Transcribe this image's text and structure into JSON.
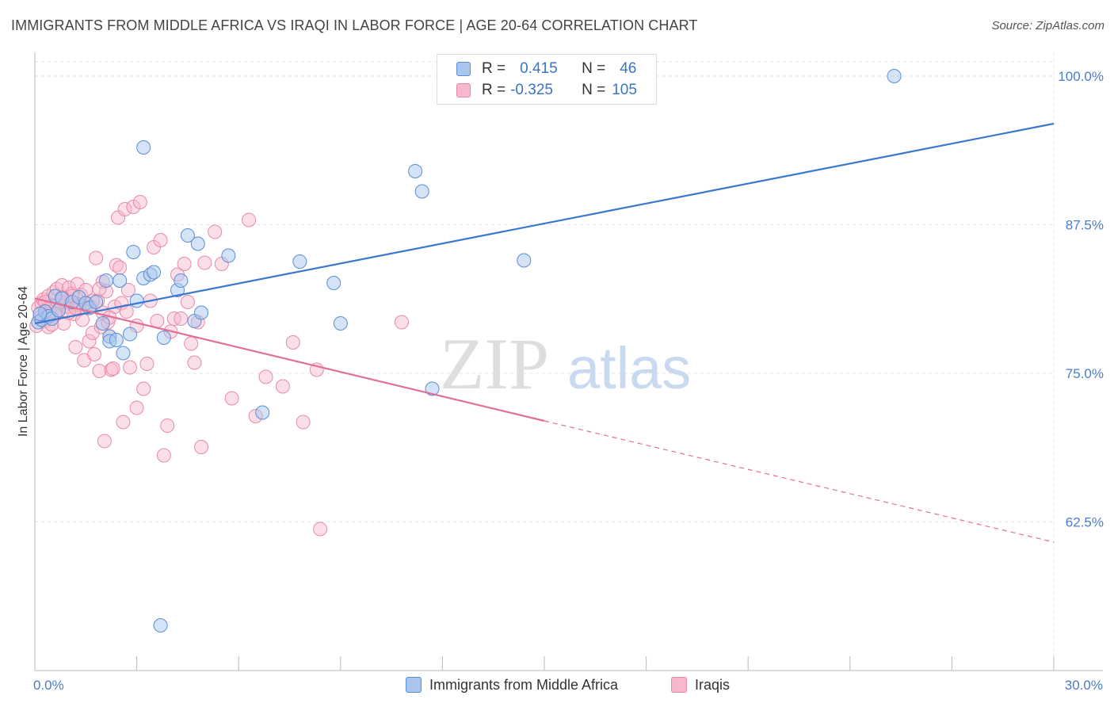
{
  "title": "IMMIGRANTS FROM MIDDLE AFRICA VS IRAQI IN LABOR FORCE | AGE 20-64 CORRELATION CHART",
  "source": "Source: ZipAtlas.com",
  "legend_stats": [
    {
      "r_label": "R =",
      "r_value": "0.415",
      "n_label": "N =",
      "n_value": "46"
    },
    {
      "r_label": "R =",
      "r_value": "-0.325",
      "n_label": "N =",
      "n_value": "105"
    }
  ],
  "watermark": {
    "zip": "ZIP",
    "atlas": "atlas"
  },
  "colors": {
    "blue_fill": "#a9c7ee",
    "blue_stroke": "#5a8fd6",
    "blue_line": "#3a78d0",
    "pink_fill": "#f6b8cc",
    "pink_stroke": "#e88aa8",
    "pink_line": "#e0709a",
    "grid": "#e3e3e3",
    "axis_text": "#4a7cc8"
  },
  "chart_data": {
    "type": "scatter",
    "xlabel": "",
    "ylabel": "In Labor Force | Age 20-64",
    "xlim": [
      0,
      30
    ],
    "ylim": [
      50,
      102
    ],
    "x_tick_labels": [
      "0.0%",
      "30.0%"
    ],
    "y_ticks": [
      62.5,
      75.0,
      87.5,
      100.0
    ],
    "y_tick_labels": [
      "62.5%",
      "75.0%",
      "87.5%",
      "100.0%"
    ],
    "grid": true,
    "legend_position": "bottom-center",
    "series": [
      {
        "name": "Immigrants from Middle Africa",
        "color": "#a9c7ee",
        "trend": {
          "x": [
            0.0,
            30.0
          ],
          "y": [
            79.2,
            96.0
          ],
          "style": "solid"
        },
        "points": [
          [
            0.1,
            79.3
          ],
          [
            0.2,
            79.5
          ],
          [
            0.3,
            80.2
          ],
          [
            0.4,
            79.8
          ],
          [
            0.5,
            79.6
          ],
          [
            0.6,
            81.5
          ],
          [
            0.8,
            81.3
          ],
          [
            1.1,
            81.0
          ],
          [
            1.3,
            81.4
          ],
          [
            1.5,
            80.9
          ],
          [
            1.6,
            80.5
          ],
          [
            1.8,
            81.0
          ],
          [
            2.0,
            79.2
          ],
          [
            2.1,
            82.8
          ],
          [
            2.2,
            78.1
          ],
          [
            2.2,
            77.7
          ],
          [
            2.4,
            77.8
          ],
          [
            2.5,
            82.8
          ],
          [
            2.6,
            76.7
          ],
          [
            2.8,
            78.3
          ],
          [
            2.9,
            85.2
          ],
          [
            3.0,
            81.1
          ],
          [
            3.2,
            83.0
          ],
          [
            3.2,
            94.0
          ],
          [
            3.4,
            83.3
          ],
          [
            3.5,
            83.5
          ],
          [
            3.7,
            53.8
          ],
          [
            3.8,
            78.0
          ],
          [
            4.2,
            82.0
          ],
          [
            4.3,
            82.8
          ],
          [
            4.5,
            86.6
          ],
          [
            4.7,
            79.4
          ],
          [
            4.8,
            85.9
          ],
          [
            4.9,
            80.1
          ],
          [
            5.7,
            84.9
          ],
          [
            6.7,
            71.7
          ],
          [
            7.8,
            84.4
          ],
          [
            8.8,
            82.6
          ],
          [
            9.0,
            79.2
          ],
          [
            11.2,
            92.0
          ],
          [
            11.4,
            90.3
          ],
          [
            11.7,
            73.7
          ],
          [
            14.4,
            84.5
          ],
          [
            25.3,
            100.0
          ],
          [
            0.15,
            80.0
          ],
          [
            0.7,
            80.3
          ]
        ]
      },
      {
        "name": "Iraqis",
        "color": "#f6b8cc",
        "trend": {
          "x": [
            0.0,
            15.0
          ],
          "y": [
            81.3,
            71.0
          ],
          "style": "solid"
        },
        "trend_extension": {
          "x": [
            15.0,
            30.0
          ],
          "y": [
            71.0,
            60.8
          ],
          "style": "dashed"
        },
        "points": [
          [
            0.05,
            79.0
          ],
          [
            0.1,
            80.5
          ],
          [
            0.15,
            79.7
          ],
          [
            0.2,
            80.9
          ],
          [
            0.25,
            81.2
          ],
          [
            0.3,
            79.4
          ],
          [
            0.35,
            80.4
          ],
          [
            0.4,
            81.5
          ],
          [
            0.45,
            80.2
          ],
          [
            0.5,
            80.7
          ],
          [
            0.55,
            81.8
          ],
          [
            0.6,
            79.9
          ],
          [
            0.65,
            82.1
          ],
          [
            0.7,
            80.3
          ],
          [
            0.75,
            81.0
          ],
          [
            0.8,
            82.4
          ],
          [
            0.85,
            79.2
          ],
          [
            0.9,
            81.3
          ],
          [
            0.95,
            80.6
          ],
          [
            1.0,
            82.2
          ],
          [
            1.05,
            80.9
          ],
          [
            1.1,
            81.7
          ],
          [
            1.15,
            80.0
          ],
          [
            1.2,
            77.2
          ],
          [
            1.25,
            82.5
          ],
          [
            1.3,
            80.4
          ],
          [
            1.35,
            81.6
          ],
          [
            1.4,
            79.5
          ],
          [
            1.45,
            76.1
          ],
          [
            1.5,
            82.0
          ],
          [
            1.55,
            80.8
          ],
          [
            1.6,
            77.7
          ],
          [
            1.65,
            80.6
          ],
          [
            1.7,
            78.4
          ],
          [
            1.75,
            76.6
          ],
          [
            1.8,
            84.7
          ],
          [
            1.85,
            81.1
          ],
          [
            1.9,
            75.2
          ],
          [
            1.95,
            78.9
          ],
          [
            2.0,
            82.7
          ],
          [
            2.05,
            69.3
          ],
          [
            2.1,
            81.9
          ],
          [
            2.15,
            79.3
          ],
          [
            2.2,
            78.1
          ],
          [
            2.25,
            75.3
          ],
          [
            2.3,
            75.4
          ],
          [
            2.35,
            80.6
          ],
          [
            2.4,
            84.1
          ],
          [
            2.45,
            88.1
          ],
          [
            2.5,
            83.9
          ],
          [
            2.55,
            80.9
          ],
          [
            2.6,
            70.9
          ],
          [
            2.65,
            88.8
          ],
          [
            2.7,
            80.2
          ],
          [
            2.75,
            82.0
          ],
          [
            2.8,
            75.5
          ],
          [
            2.9,
            89.0
          ],
          [
            3.0,
            72.1
          ],
          [
            3.1,
            89.4
          ],
          [
            3.2,
            73.7
          ],
          [
            3.3,
            75.8
          ],
          [
            3.4,
            81.1
          ],
          [
            3.5,
            85.6
          ],
          [
            3.6,
            79.4
          ],
          [
            3.7,
            86.2
          ],
          [
            3.8,
            68.1
          ],
          [
            3.9,
            70.6
          ],
          [
            4.0,
            78.5
          ],
          [
            4.1,
            79.6
          ],
          [
            4.2,
            83.3
          ],
          [
            4.3,
            79.6
          ],
          [
            4.4,
            84.2
          ],
          [
            4.5,
            81.0
          ],
          [
            4.6,
            77.5
          ],
          [
            4.7,
            75.9
          ],
          [
            4.8,
            79.3
          ],
          [
            4.9,
            68.8
          ],
          [
            5.0,
            84.3
          ],
          [
            5.3,
            86.9
          ],
          [
            5.5,
            84.2
          ],
          [
            5.8,
            72.9
          ],
          [
            6.3,
            87.9
          ],
          [
            6.5,
            71.4
          ],
          [
            6.8,
            74.7
          ],
          [
            7.3,
            73.9
          ],
          [
            7.6,
            77.6
          ],
          [
            7.9,
            70.9
          ],
          [
            8.3,
            75.3
          ],
          [
            8.4,
            61.9
          ],
          [
            10.8,
            79.3
          ],
          [
            0.4,
            78.9
          ],
          [
            0.9,
            81.0
          ],
          [
            1.0,
            80.1
          ],
          [
            1.3,
            80.8
          ],
          [
            2.0,
            80.1
          ],
          [
            3.0,
            79.0
          ],
          [
            0.3,
            81.0
          ],
          [
            0.6,
            80.0
          ],
          [
            1.1,
            81.5
          ],
          [
            1.7,
            81.1
          ],
          [
            2.2,
            79.7
          ],
          [
            0.5,
            79.1
          ],
          [
            0.8,
            81.4
          ],
          [
            1.2,
            80.5
          ],
          [
            1.9,
            82.1
          ]
        ]
      }
    ]
  }
}
